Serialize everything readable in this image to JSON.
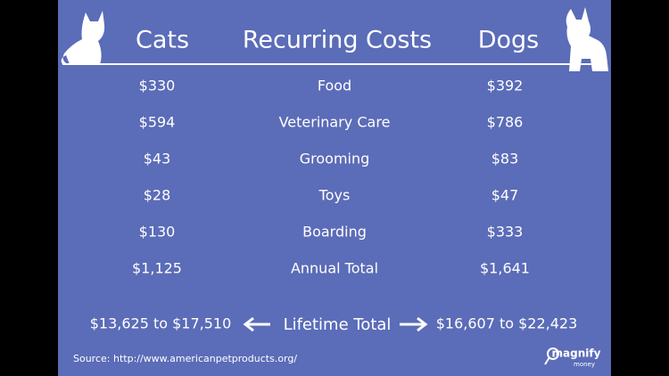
{
  "header": {
    "cats": "Cats",
    "title": "Recurring Costs",
    "dogs": "Dogs"
  },
  "table": {
    "rows": [
      [
        "$330",
        "Food",
        "$392"
      ],
      [
        "$594",
        "Veterinary Care",
        "$786"
      ],
      [
        "$43",
        "Grooming",
        "$83"
      ],
      [
        "$28",
        "Toys",
        "$47"
      ],
      [
        "$130",
        "Boarding",
        "$333"
      ],
      [
        "$1,125",
        "Annual Total",
        "$1,641"
      ]
    ]
  },
  "lifetime": {
    "cats": "$13,625 to $17,510",
    "label": "Lifetime Total",
    "dogs": "$16,607 to $22,423"
  },
  "source": "Source: http://www.americanpetproducts.org/",
  "logo": {
    "line1": "magnify",
    "line2": "money"
  }
}
